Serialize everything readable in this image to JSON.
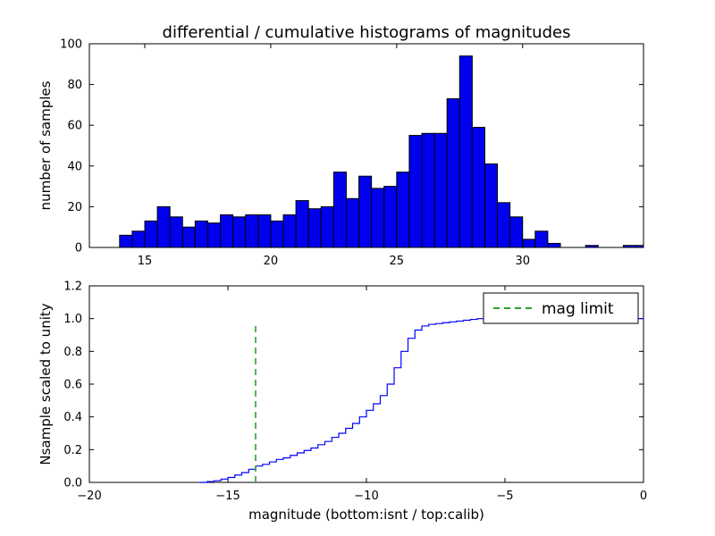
{
  "figure": {
    "background": "#ffffff",
    "title": "differential / cumulative histograms of magnitudes"
  },
  "chart_data": [
    {
      "type": "bar",
      "role": "differential-histogram",
      "title": "differential / cumulative histograms of magnitudes",
      "xlabel": "",
      "ylabel": "number of samples",
      "xlim": [
        12.8,
        34.8
      ],
      "ylim": [
        0,
        100
      ],
      "grid": false,
      "xticks": {
        "values": [
          15,
          20,
          25,
          30
        ],
        "labels": [
          "15",
          "20",
          "25",
          "30"
        ]
      },
      "yticks": {
        "values": [
          0,
          20,
          40,
          60,
          80,
          100
        ],
        "labels": [
          "0",
          "20",
          "40",
          "60",
          "80",
          "100"
        ]
      },
      "bin_start": 14.0,
      "bin_width": 0.5,
      "values": [
        6,
        8,
        13,
        20,
        15,
        10,
        13,
        12,
        16,
        15,
        16,
        16,
        13,
        16,
        23,
        19,
        20,
        37,
        24,
        35,
        29,
        30,
        37,
        55,
        56,
        56,
        73,
        94,
        59,
        41,
        22,
        15,
        4,
        8,
        2,
        0,
        0,
        1,
        0,
        0,
        1,
        1
      ],
      "bar_fill": "#0000ee",
      "bar_edge": "#000000"
    },
    {
      "type": "line",
      "role": "cumulative-histogram",
      "step": true,
      "title": "",
      "xlabel": "magnitude (bottom:isnt / top:calib)",
      "ylabel": "Nsample scaled to unity",
      "xlim": [
        -20,
        0
      ],
      "ylim": [
        0,
        1.2
      ],
      "grid": false,
      "xticks": {
        "values": [
          -20,
          -15,
          -10,
          -5,
          0
        ],
        "labels": [
          "−20",
          "−15",
          "−10",
          "−5",
          "0"
        ]
      },
      "yticks": {
        "values": [
          0,
          0.2,
          0.4,
          0.6,
          0.8,
          1.0,
          1.2
        ],
        "labels": [
          "0.0",
          "0.2",
          "0.4",
          "0.6",
          "0.8",
          "1.0",
          "1.2"
        ]
      },
      "line_color": "#0000ff",
      "points": [
        [
          -16.0,
          0.0
        ],
        [
          -15.75,
          0.005
        ],
        [
          -15.5,
          0.01
        ],
        [
          -15.25,
          0.02
        ],
        [
          -15.0,
          0.03
        ],
        [
          -14.75,
          0.045
        ],
        [
          -14.5,
          0.06
        ],
        [
          -14.25,
          0.08
        ],
        [
          -14.0,
          0.1
        ],
        [
          -13.75,
          0.11
        ],
        [
          -13.5,
          0.125
        ],
        [
          -13.25,
          0.14
        ],
        [
          -13.0,
          0.15
        ],
        [
          -12.75,
          0.165
        ],
        [
          -12.5,
          0.18
        ],
        [
          -12.25,
          0.195
        ],
        [
          -12.0,
          0.21
        ],
        [
          -11.75,
          0.23
        ],
        [
          -11.5,
          0.25
        ],
        [
          -11.25,
          0.275
        ],
        [
          -11.0,
          0.3
        ],
        [
          -10.75,
          0.33
        ],
        [
          -10.5,
          0.36
        ],
        [
          -10.25,
          0.4
        ],
        [
          -10.0,
          0.44
        ],
        [
          -9.75,
          0.48
        ],
        [
          -9.5,
          0.53
        ],
        [
          -9.25,
          0.6
        ],
        [
          -9.0,
          0.7
        ],
        [
          -8.75,
          0.8
        ],
        [
          -8.5,
          0.88
        ],
        [
          -8.25,
          0.93
        ],
        [
          -8.0,
          0.955
        ],
        [
          -7.75,
          0.965
        ],
        [
          -7.5,
          0.97
        ],
        [
          -7.25,
          0.975
        ],
        [
          -7.0,
          0.98
        ],
        [
          -6.75,
          0.985
        ],
        [
          -6.5,
          0.99
        ],
        [
          -6.25,
          0.995
        ],
        [
          -6.0,
          1.0
        ],
        [
          0.0,
          1.0
        ]
      ],
      "annotation": {
        "name": "mag-limit-line",
        "x": -14,
        "y0": 0.0,
        "y1": 0.97,
        "color": "#2ca02c",
        "dash": true
      },
      "legend": {
        "position": "upper right",
        "entries": [
          {
            "label": "mag limit",
            "color": "#2ca02c",
            "dash": true
          }
        ]
      }
    }
  ]
}
